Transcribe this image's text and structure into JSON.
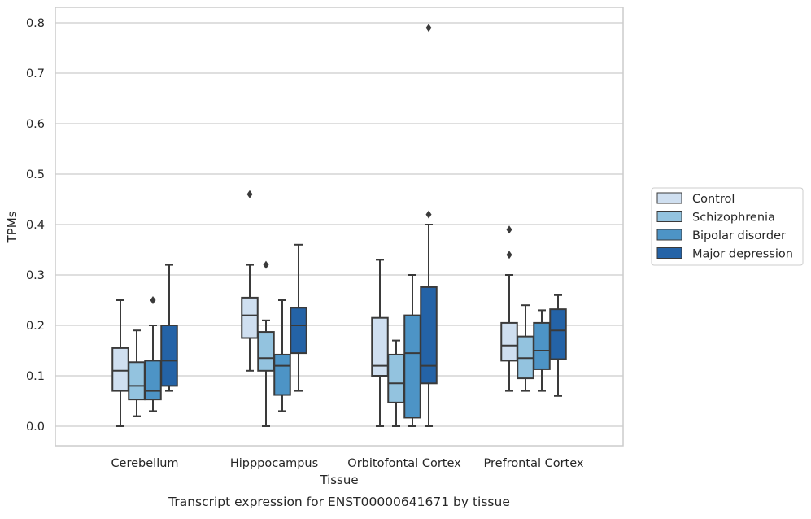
{
  "chart_data": {
    "type": "boxplot",
    "caption": "Transcript expression for ENST00000641671 by tissue",
    "xlabel": "Tissue",
    "ylabel": "TPMs",
    "ylim": [
      -0.04,
      0.83
    ],
    "yticks": [
      0.0,
      0.1,
      0.2,
      0.3,
      0.4,
      0.5,
      0.6,
      0.7,
      0.8
    ],
    "ytick_labels": [
      "0.0",
      "0.1",
      "0.2",
      "0.3",
      "0.4",
      "0.5",
      "0.6",
      "0.7",
      "0.8"
    ],
    "grid": "horizontal",
    "legend_position": "right-outside",
    "categories": [
      "Cerebellum",
      "Hipppocampus",
      "Orbitofontal Cortex",
      "Prefrontal Cortex"
    ],
    "series": [
      {
        "name": "Control",
        "color": "#cfdff0",
        "boxes": [
          {
            "whislo": 0.0,
            "q1": 0.07,
            "med": 0.11,
            "q3": 0.155,
            "whishi": 0.25,
            "fliers": []
          },
          {
            "whislo": 0.11,
            "q1": 0.175,
            "med": 0.22,
            "q3": 0.255,
            "whishi": 0.32,
            "fliers": [
              0.46
            ]
          },
          {
            "whislo": 0.0,
            "q1": 0.1,
            "med": 0.12,
            "q3": 0.215,
            "whishi": 0.33,
            "fliers": []
          },
          {
            "whislo": 0.07,
            "q1": 0.13,
            "med": 0.16,
            "q3": 0.205,
            "whishi": 0.3,
            "fliers": [
              0.34,
              0.39
            ]
          }
        ]
      },
      {
        "name": "Schizophrenia",
        "color": "#93c3df",
        "boxes": [
          {
            "whislo": 0.02,
            "q1": 0.053,
            "med": 0.08,
            "q3": 0.127,
            "whishi": 0.19,
            "fliers": []
          },
          {
            "whislo": 0.0,
            "q1": 0.11,
            "med": 0.135,
            "q3": 0.187,
            "whishi": 0.21,
            "fliers": [
              0.32
            ]
          },
          {
            "whislo": 0.0,
            "q1": 0.047,
            "med": 0.085,
            "q3": 0.142,
            "whishi": 0.17,
            "fliers": []
          },
          {
            "whislo": 0.07,
            "q1": 0.095,
            "med": 0.135,
            "q3": 0.178,
            "whishi": 0.24,
            "fliers": []
          }
        ]
      },
      {
        "name": "Bipolar disorder",
        "color": "#4d94c6",
        "boxes": [
          {
            "whislo": 0.03,
            "q1": 0.053,
            "med": 0.07,
            "q3": 0.13,
            "whishi": 0.2,
            "fliers": [
              0.25
            ]
          },
          {
            "whislo": 0.03,
            "q1": 0.062,
            "med": 0.12,
            "q3": 0.142,
            "whishi": 0.25,
            "fliers": []
          },
          {
            "whislo": 0.0,
            "q1": 0.017,
            "med": 0.145,
            "q3": 0.22,
            "whishi": 0.3,
            "fliers": []
          },
          {
            "whislo": 0.07,
            "q1": 0.113,
            "med": 0.15,
            "q3": 0.205,
            "whishi": 0.23,
            "fliers": []
          }
        ]
      },
      {
        "name": "Major depression",
        "color": "#2463a7",
        "boxes": [
          {
            "whislo": 0.07,
            "q1": 0.08,
            "med": 0.13,
            "q3": 0.2,
            "whishi": 0.32,
            "fliers": []
          },
          {
            "whislo": 0.07,
            "q1": 0.145,
            "med": 0.2,
            "q3": 0.235,
            "whishi": 0.36,
            "fliers": []
          },
          {
            "whislo": 0.0,
            "q1": 0.085,
            "med": 0.12,
            "q3": 0.276,
            "whishi": 0.4,
            "fliers": [
              0.42,
              0.79
            ]
          },
          {
            "whislo": 0.06,
            "q1": 0.133,
            "med": 0.19,
            "q3": 0.232,
            "whishi": 0.26,
            "fliers": []
          }
        ]
      }
    ]
  }
}
